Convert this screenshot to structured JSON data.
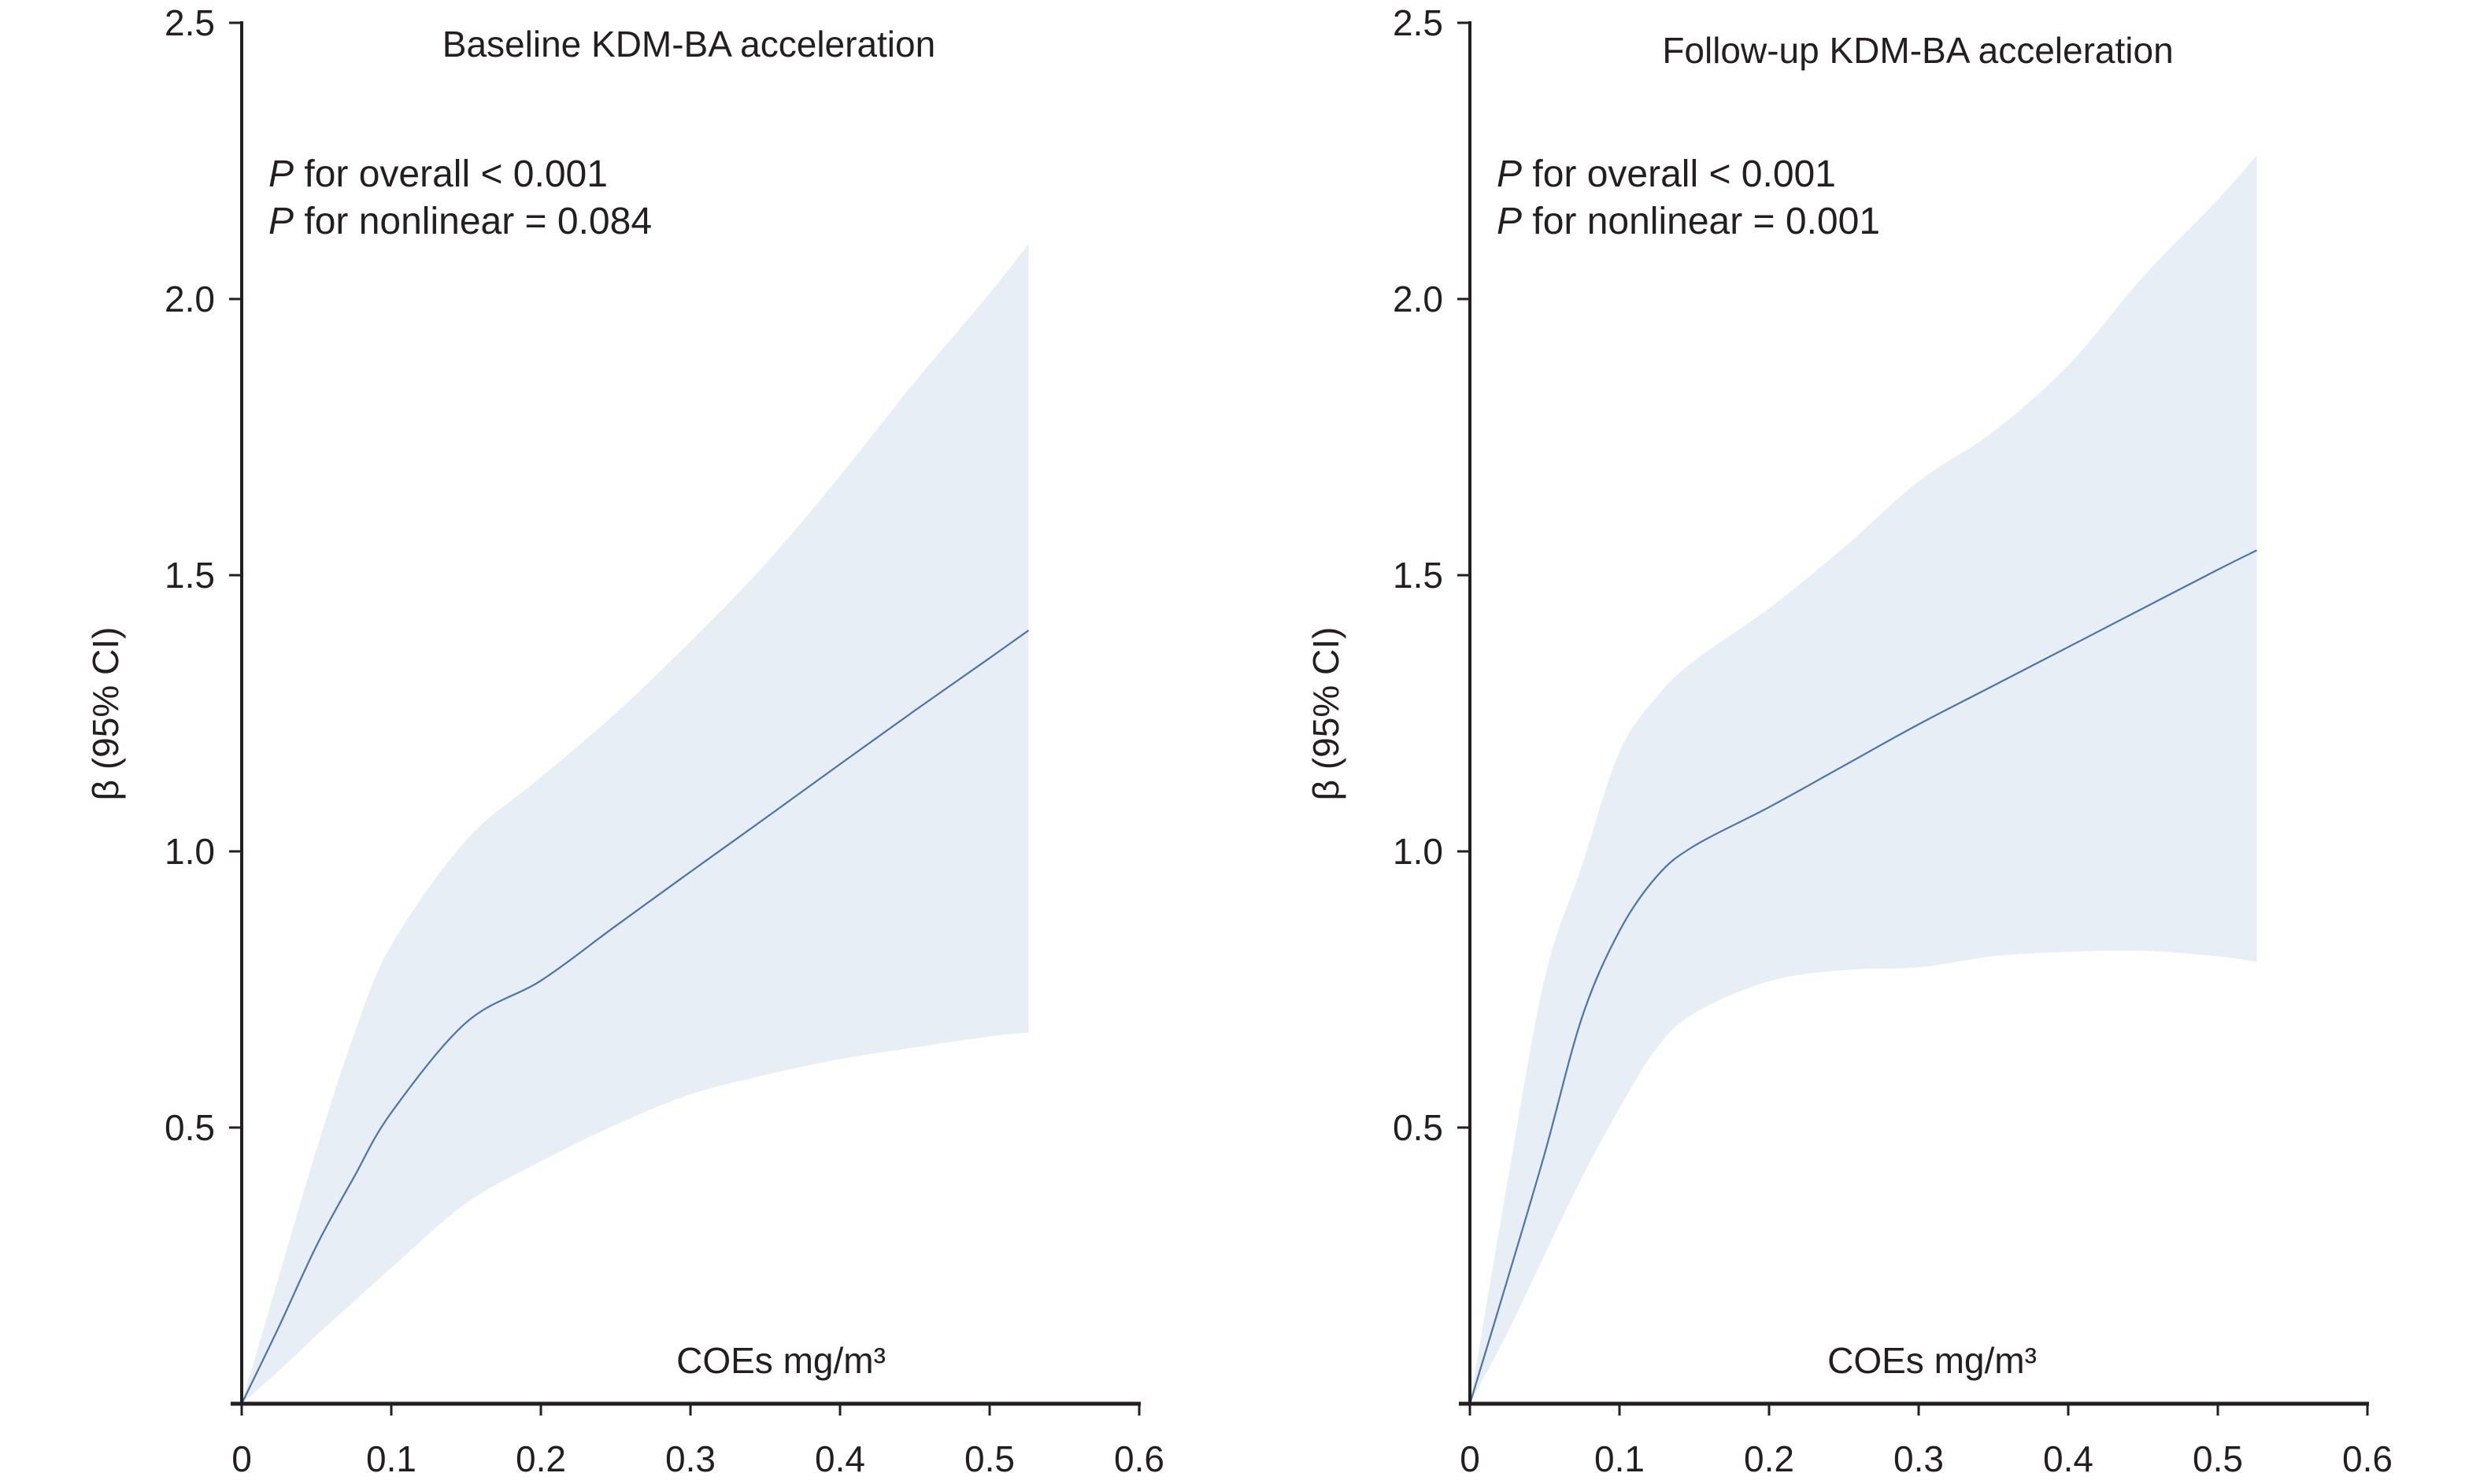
{
  "figure": {
    "colors": {
      "band": "#E8EEF5",
      "line": "#4A74AC",
      "axis": "#231F20"
    }
  },
  "chart_data": [
    {
      "type": "line",
      "title": "Baseline KDM-BA acceleration",
      "xlabel": "COEs mg/m³",
      "ylabel": "β (95% CI)",
      "xlim": [
        0,
        0.6
      ],
      "ylim": [
        0,
        2.5
      ],
      "x_ticks": [
        "0",
        "0.1",
        "0.2",
        "0.3",
        "0.4",
        "0.5",
        "0.6"
      ],
      "x_tick_values": [
        0,
        0.1,
        0.2,
        0.3,
        0.4,
        0.5,
        0.6
      ],
      "y_ticks": [
        "0.5",
        "1.0",
        "1.5",
        "2.0",
        "2.5"
      ],
      "y_tick_values": [
        0.5,
        1.0,
        1.5,
        2.0,
        2.5
      ],
      "grid": false,
      "annotations": {
        "p_prefix": "P",
        "p_overall": " for overall < 0.001",
        "p_nonlinear": " for nonlinear = 0.084"
      },
      "x": [
        0,
        0.025,
        0.05,
        0.075,
        0.1,
        0.15,
        0.2,
        0.25,
        0.3,
        0.35,
        0.4,
        0.45,
        0.5,
        0.526
      ],
      "series": [
        {
          "name": "β",
          "values": [
            0,
            0.14,
            0.286,
            0.41,
            0.527,
            0.69,
            0.766,
            0.865,
            0.963,
            1.06,
            1.158,
            1.255,
            1.35,
            1.4
          ]
        },
        {
          "name": "95% CI lower",
          "values": [
            0,
            0.06,
            0.124,
            0.185,
            0.246,
            0.363,
            0.439,
            0.505,
            0.56,
            0.595,
            0.624,
            0.645,
            0.665,
            0.672
          ]
        },
        {
          "name": "95% CI upper",
          "values": [
            0,
            0.232,
            0.46,
            0.668,
            0.83,
            1.02,
            1.134,
            1.25,
            1.38,
            1.52,
            1.68,
            1.85,
            2.01,
            2.1
          ]
        }
      ]
    },
    {
      "type": "line",
      "title": "Follow-up KDM-BA acceleration",
      "xlabel": "COEs mg/m³",
      "ylabel": "β (95% CI)",
      "xlim": [
        0,
        0.6
      ],
      "ylim": [
        0,
        2.5
      ],
      "x_ticks": [
        "0",
        "0.1",
        "0.2",
        "0.3",
        "0.4",
        "0.5",
        "0.6"
      ],
      "x_tick_values": [
        0,
        0.1,
        0.2,
        0.3,
        0.4,
        0.5,
        0.6
      ],
      "y_ticks": [
        "0.5",
        "1.0",
        "1.5",
        "2.0",
        "2.5"
      ],
      "y_tick_values": [
        0.5,
        1.0,
        1.5,
        2.0,
        2.5
      ],
      "grid": false,
      "annotations": {
        "p_prefix": "P",
        "p_overall": " for overall < 0.001",
        "p_nonlinear": " for nonlinear = 0.001"
      },
      "x": [
        0,
        0.025,
        0.05,
        0.075,
        0.1,
        0.125,
        0.15,
        0.2,
        0.25,
        0.3,
        0.35,
        0.4,
        0.45,
        0.5,
        0.526
      ],
      "series": [
        {
          "name": "β",
          "values": [
            0,
            0.224,
            0.453,
            0.7,
            0.856,
            0.955,
            1.01,
            1.08,
            1.155,
            1.23,
            1.3,
            1.37,
            1.44,
            1.51,
            1.545
          ]
        },
        {
          "name": "95% CI lower",
          "values": [
            0,
            0.128,
            0.27,
            0.41,
            0.535,
            0.644,
            0.707,
            0.765,
            0.785,
            0.79,
            0.81,
            0.818,
            0.82,
            0.81,
            0.8
          ]
        },
        {
          "name": "95% CI upper",
          "values": [
            0,
            0.4,
            0.77,
            0.975,
            1.18,
            1.28,
            1.345,
            1.44,
            1.55,
            1.67,
            1.76,
            1.88,
            2.04,
            2.18,
            2.26
          ]
        }
      ]
    }
  ]
}
